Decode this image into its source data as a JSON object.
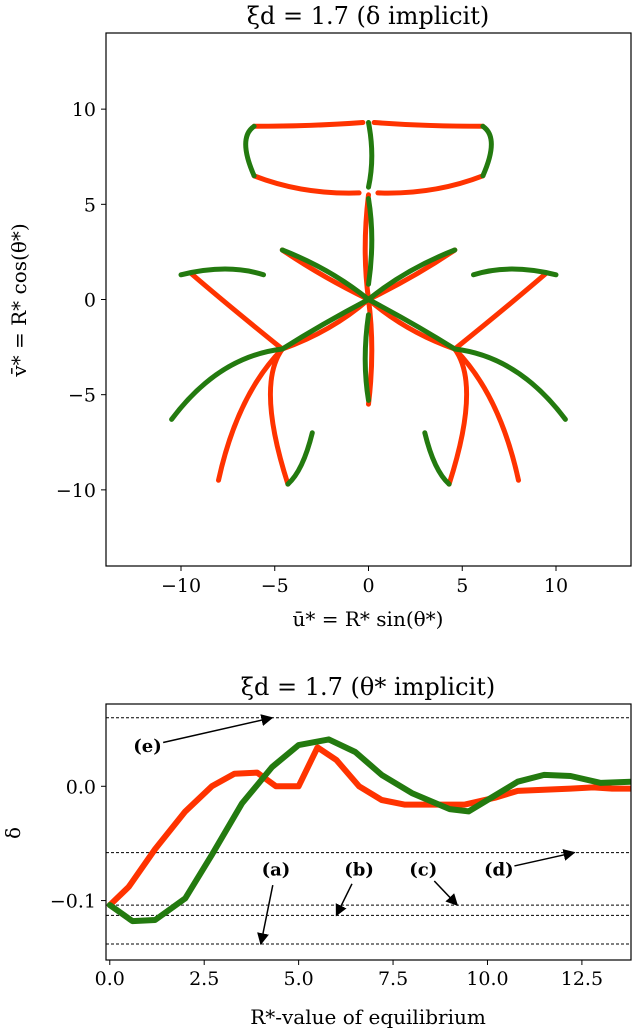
{
  "colors": {
    "red": "#ff3300",
    "green": "#237a0f",
    "axis": "#000000",
    "dash": "#000000"
  },
  "chart_data": [
    {
      "type": "scatter",
      "title": "ξd = 1.7  (δ implicit)",
      "xlabel": "ū* = R* sin(θ*)",
      "ylabel": "v̄* = R* cos(θ*)",
      "xlim": [
        -14,
        14
      ],
      "ylim": [
        -14,
        14
      ],
      "xticks": [
        -10,
        -5,
        0,
        5,
        10
      ],
      "yticks": [
        -10,
        -5,
        0,
        5,
        10
      ],
      "xtick_labels": [
        "−10",
        "−5",
        "0",
        "5",
        "10"
      ],
      "ytick_labels": [
        "−10",
        "−5",
        "0",
        "5",
        "10"
      ],
      "grid": false,
      "series": [
        {
          "color": "red",
          "curves": [
            [
              [
                0,
                0
              ],
              [
                -0.35,
                2.6
              ],
              [
                0,
                5.5
              ]
            ],
            [
              [
                0,
                0
              ],
              [
                0.35,
                -2.6
              ],
              [
                0,
                -5.5
              ]
            ],
            [
              [
                0,
                0
              ],
              [
                2.5,
                1.2
              ],
              [
                4.6,
                2.6
              ]
            ],
            [
              [
                0,
                0
              ],
              [
                -2.5,
                1.2
              ],
              [
                -4.6,
                2.6
              ]
            ],
            [
              [
                0,
                0
              ],
              [
                2.0,
                -1.7
              ],
              [
                4.6,
                -2.6
              ]
            ],
            [
              [
                0,
                0
              ],
              [
                -2.0,
                -1.7
              ],
              [
                -4.6,
                -2.6
              ]
            ],
            [
              [
                0.5,
                5.6
              ],
              [
                3.5,
                5.5
              ],
              [
                6.1,
                6.5
              ]
            ],
            [
              [
                -0.5,
                5.6
              ],
              [
                -3.5,
                5.5
              ],
              [
                -6.1,
                6.5
              ]
            ],
            [
              [
                -6.1,
                9.1
              ],
              [
                -3.0,
                9.1
              ],
              [
                -0.3,
                9.3
              ]
            ],
            [
              [
                0.3,
                9.3
              ],
              [
                3.0,
                9.1
              ],
              [
                6.1,
                9.1
              ]
            ],
            [
              [
                -4.6,
                -2.6
              ],
              [
                -7.0,
                -5.0
              ],
              [
                -8.0,
                -9.5
              ]
            ],
            [
              [
                -4.6,
                -2.6
              ],
              [
                -6.0,
                -4.5
              ],
              [
                -4.3,
                -9.7
              ]
            ],
            [
              [
                4.6,
                -2.6
              ],
              [
                7.0,
                -5.0
              ],
              [
                8.0,
                -9.5
              ]
            ],
            [
              [
                4.6,
                -2.6
              ],
              [
                6.0,
                -4.5
              ],
              [
                4.3,
                -9.7
              ]
            ],
            [
              [
                -9.5,
                1.4
              ],
              [
                -7.5,
                -0.3
              ],
              [
                -4.6,
                -2.6
              ]
            ],
            [
              [
                9.5,
                1.4
              ],
              [
                7.5,
                -0.3
              ],
              [
                4.6,
                -2.6
              ]
            ]
          ]
        },
        {
          "color": "green",
          "curves": [
            [
              [
                0,
                0.8
              ],
              [
                0.35,
                3.2
              ],
              [
                0,
                5.3
              ]
            ],
            [
              [
                0,
                5.9
              ],
              [
                0.35,
                7.5
              ],
              [
                0,
                9.3
              ]
            ],
            [
              [
                0,
                -0.8
              ],
              [
                -0.35,
                -3.2
              ],
              [
                0,
                -5.3
              ]
            ],
            [
              [
                0,
                0
              ],
              [
                -2.5,
                -1.3
              ],
              [
                -4.6,
                -2.6
              ]
            ],
            [
              [
                0,
                0
              ],
              [
                2.5,
                -1.3
              ],
              [
                4.6,
                -2.6
              ]
            ],
            [
              [
                0,
                0
              ],
              [
                -2.0,
                1.6
              ],
              [
                -4.6,
                2.6
              ]
            ],
            [
              [
                0,
                0
              ],
              [
                2.0,
                1.6
              ],
              [
                4.6,
                2.6
              ]
            ],
            [
              [
                -4.6,
                -2.6
              ],
              [
                -8.0,
                -3.0
              ],
              [
                -10.5,
                -6.3
              ]
            ],
            [
              [
                4.6,
                -2.6
              ],
              [
                8.0,
                -3.0
              ],
              [
                10.5,
                -6.3
              ]
            ],
            [
              [
                -10.0,
                1.3
              ],
              [
                -7.5,
                1.9
              ],
              [
                -5.6,
                1.3
              ]
            ],
            [
              [
                10.0,
                1.3
              ],
              [
                7.5,
                1.9
              ],
              [
                5.6,
                1.3
              ]
            ],
            [
              [
                -6.1,
                6.5
              ],
              [
                -7.0,
                8.5
              ],
              [
                -6.1,
                9.1
              ]
            ],
            [
              [
                6.1,
                6.5
              ],
              [
                7.0,
                8.5
              ],
              [
                6.1,
                9.1
              ]
            ],
            [
              [
                -3.0,
                -7.0
              ],
              [
                -3.5,
                -9.0
              ],
              [
                -4.3,
                -9.7
              ]
            ],
            [
              [
                3.0,
                -7.0
              ],
              [
                3.5,
                -9.0
              ],
              [
                4.3,
                -9.7
              ]
            ]
          ]
        }
      ]
    },
    {
      "type": "line",
      "title": "ξd = 1.7  (θ* implicit)",
      "xlabel": "R*-value of equilibrium",
      "ylabel": "δ",
      "xlim": [
        -0.1,
        13.8
      ],
      "ylim": [
        -0.152,
        0.072
      ],
      "xticks": [
        0.0,
        2.5,
        5.0,
        7.5,
        10.0,
        12.5
      ],
      "xtick_labels": [
        "0.0",
        "2.5",
        "5.0",
        "7.5",
        "10.0",
        "12.5"
      ],
      "yticks": [
        -0.1,
        0.0
      ],
      "ytick_labels": [
        "−0.1",
        "0.0"
      ],
      "grid": false,
      "hlines": [
        0.06,
        -0.058,
        -0.104,
        -0.113,
        -0.138
      ],
      "series": [
        {
          "color": "red",
          "x": [
            0.0,
            0.5,
            1.2,
            2.0,
            2.7,
            3.3,
            3.9,
            4.4,
            5.0,
            5.5,
            6.0,
            6.6,
            7.2,
            7.8,
            8.5,
            9.4,
            10.2,
            10.8,
            11.5,
            12.2,
            12.8,
            13.3,
            13.8
          ],
          "values": [
            -0.104,
            -0.088,
            -0.055,
            -0.022,
            0.0,
            0.011,
            0.012,
            0.0,
            0.0,
            0.034,
            0.023,
            0.0,
            -0.012,
            -0.016,
            -0.016,
            -0.016,
            -0.01,
            -0.004,
            -0.003,
            -0.002,
            -0.001,
            -0.002,
            -0.002
          ]
        },
        {
          "color": "green",
          "x": [
            0.0,
            0.6,
            1.2,
            2.0,
            2.7,
            3.5,
            4.3,
            5.0,
            5.8,
            6.5,
            7.2,
            8.0,
            9.0,
            9.5,
            10.0,
            10.8,
            11.5,
            12.2,
            13.0,
            13.8
          ],
          "values": [
            -0.104,
            -0.118,
            -0.117,
            -0.098,
            -0.06,
            -0.015,
            0.017,
            0.036,
            0.041,
            0.03,
            0.01,
            -0.006,
            -0.02,
            -0.022,
            -0.012,
            0.004,
            0.01,
            0.009,
            0.003,
            0.004
          ]
        }
      ],
      "annotations": [
        {
          "text": "(e)",
          "xy": [
            4.3,
            0.06
          ],
          "xytext": [
            1.0,
            0.03
          ]
        },
        {
          "text": "(a)",
          "xy": [
            4.0,
            -0.138
          ],
          "xytext": [
            4.4,
            -0.078
          ]
        },
        {
          "text": "(b)",
          "xy": [
            6.0,
            -0.113
          ],
          "xytext": [
            6.6,
            -0.078
          ]
        },
        {
          "text": "(c)",
          "xy": [
            9.2,
            -0.104
          ],
          "xytext": [
            8.3,
            -0.078
          ]
        },
        {
          "text": "(d)",
          "xy": [
            12.3,
            -0.058
          ],
          "xytext": [
            10.3,
            -0.078
          ]
        }
      ]
    }
  ]
}
